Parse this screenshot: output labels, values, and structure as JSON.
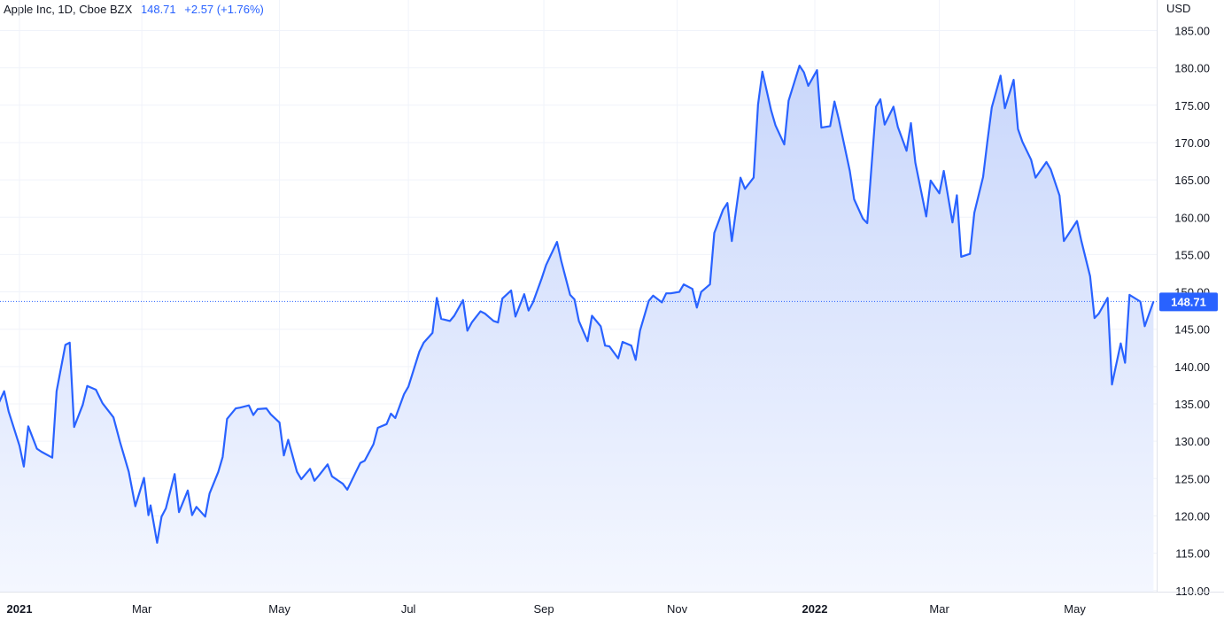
{
  "legend": {
    "symbol": "Apple Inc, 1D, Cboe BZX",
    "last": "148.71",
    "change": "+2.57 (+1.76%)"
  },
  "currency": "USD",
  "colors": {
    "line": "#2962ff",
    "fill_top": "#c9d7fb",
    "fill_bottom": "#f4f7ff",
    "grid": "#f0f3fa",
    "text": "#131722",
    "price_line": "#2962ff"
  },
  "chart_data": {
    "type": "area",
    "title": "Apple Inc, 1D, Cboe BZX",
    "ylabel": "USD",
    "ylim": [
      110,
      185
    ],
    "grid": true,
    "y_ticks": [
      "185.00",
      "180.00",
      "175.00",
      "170.00",
      "165.00",
      "160.00",
      "155.00",
      "150.00",
      "145.00",
      "140.00",
      "135.00",
      "130.00",
      "125.00",
      "120.00",
      "115.00",
      "110.00"
    ],
    "x_ticks": [
      {
        "label": "2021",
        "date": "2021-01-04",
        "major": true
      },
      {
        "label": "Mar",
        "date": "2021-03-01",
        "major": false
      },
      {
        "label": "May",
        "date": "2021-05-03",
        "major": false
      },
      {
        "label": "Jul",
        "date": "2021-07-01",
        "major": false
      },
      {
        "label": "Sep",
        "date": "2021-09-01",
        "major": false
      },
      {
        "label": "Nov",
        "date": "2021-11-01",
        "major": false
      },
      {
        "label": "2022",
        "date": "2022-01-03",
        "major": true
      },
      {
        "label": "Mar",
        "date": "2022-03-01",
        "major": false
      },
      {
        "label": "May",
        "date": "2022-05-02",
        "major": false
      }
    ],
    "last_price": "148.71",
    "series": [
      {
        "name": "Apple Inc",
        "points": [
          [
            "2020-12-16",
            132.5
          ],
          [
            "2020-12-18",
            131.5
          ],
          [
            "2020-12-21",
            132.0
          ],
          [
            "2020-12-23",
            133.5
          ],
          [
            "2020-12-28",
            136.7
          ],
          [
            "2020-12-30",
            134.0
          ],
          [
            "2021-01-04",
            129.4
          ],
          [
            "2021-01-06",
            126.6
          ],
          [
            "2021-01-08",
            132.0
          ],
          [
            "2021-01-12",
            129.0
          ],
          [
            "2021-01-14",
            128.6
          ],
          [
            "2021-01-19",
            127.8
          ],
          [
            "2021-01-21",
            136.7
          ],
          [
            "2021-01-25",
            142.9
          ],
          [
            "2021-01-27",
            143.2
          ],
          [
            "2021-01-29",
            131.9
          ],
          [
            "2021-02-02",
            134.9
          ],
          [
            "2021-02-04",
            137.4
          ],
          [
            "2021-02-08",
            136.9
          ],
          [
            "2021-02-11",
            135.1
          ],
          [
            "2021-02-16",
            133.2
          ],
          [
            "2021-02-19",
            129.9
          ],
          [
            "2021-02-23",
            125.9
          ],
          [
            "2021-02-26",
            121.3
          ],
          [
            "2021-03-02",
            125.1
          ],
          [
            "2021-03-04",
            120.1
          ],
          [
            "2021-03-05",
            121.4
          ],
          [
            "2021-03-08",
            116.4
          ],
          [
            "2021-03-10",
            119.9
          ],
          [
            "2021-03-12",
            121.0
          ],
          [
            "2021-03-16",
            125.6
          ],
          [
            "2021-03-18",
            120.5
          ],
          [
            "2021-03-22",
            123.4
          ],
          [
            "2021-03-24",
            120.1
          ],
          [
            "2021-03-26",
            121.2
          ],
          [
            "2021-03-30",
            119.9
          ],
          [
            "2021-04-01",
            123.0
          ],
          [
            "2021-04-05",
            125.9
          ],
          [
            "2021-04-07",
            127.9
          ],
          [
            "2021-04-09",
            133.0
          ],
          [
            "2021-04-13",
            134.4
          ],
          [
            "2021-04-15",
            134.5
          ],
          [
            "2021-04-19",
            134.8
          ],
          [
            "2021-04-21",
            133.5
          ],
          [
            "2021-04-23",
            134.3
          ],
          [
            "2021-04-27",
            134.4
          ],
          [
            "2021-04-29",
            133.6
          ],
          [
            "2021-05-03",
            132.5
          ],
          [
            "2021-05-05",
            128.1
          ],
          [
            "2021-05-07",
            130.2
          ],
          [
            "2021-05-11",
            125.9
          ],
          [
            "2021-05-13",
            124.9
          ],
          [
            "2021-05-17",
            126.3
          ],
          [
            "2021-05-19",
            124.7
          ],
          [
            "2021-05-21",
            125.4
          ],
          [
            "2021-05-25",
            126.9
          ],
          [
            "2021-05-27",
            125.3
          ],
          [
            "2021-06-01",
            124.3
          ],
          [
            "2021-06-03",
            123.5
          ],
          [
            "2021-06-07",
            125.9
          ],
          [
            "2021-06-09",
            127.1
          ],
          [
            "2021-06-11",
            127.4
          ],
          [
            "2021-06-15",
            129.6
          ],
          [
            "2021-06-17",
            131.8
          ],
          [
            "2021-06-21",
            132.3
          ],
          [
            "2021-06-23",
            133.7
          ],
          [
            "2021-06-25",
            133.1
          ],
          [
            "2021-06-29",
            136.3
          ],
          [
            "2021-07-01",
            137.3
          ],
          [
            "2021-07-06",
            142.0
          ],
          [
            "2021-07-08",
            143.2
          ],
          [
            "2021-07-12",
            144.5
          ],
          [
            "2021-07-14",
            149.2
          ],
          [
            "2021-07-16",
            146.4
          ],
          [
            "2021-07-20",
            146.1
          ],
          [
            "2021-07-22",
            146.8
          ],
          [
            "2021-07-26",
            148.9
          ],
          [
            "2021-07-28",
            144.8
          ],
          [
            "2021-07-30",
            145.9
          ],
          [
            "2021-08-03",
            147.4
          ],
          [
            "2021-08-05",
            147.1
          ],
          [
            "2021-08-09",
            146.1
          ],
          [
            "2021-08-11",
            145.9
          ],
          [
            "2021-08-13",
            149.1
          ],
          [
            "2021-08-17",
            150.2
          ],
          [
            "2021-08-19",
            146.7
          ],
          [
            "2021-08-23",
            149.7
          ],
          [
            "2021-08-25",
            147.5
          ],
          [
            "2021-08-27",
            148.6
          ],
          [
            "2021-08-31",
            151.8
          ],
          [
            "2021-09-02",
            153.6
          ],
          [
            "2021-09-07",
            156.7
          ],
          [
            "2021-09-09",
            154.1
          ],
          [
            "2021-09-13",
            149.6
          ],
          [
            "2021-09-15",
            149.0
          ],
          [
            "2021-09-17",
            146.1
          ],
          [
            "2021-09-21",
            143.4
          ],
          [
            "2021-09-23",
            146.8
          ],
          [
            "2021-09-27",
            145.4
          ],
          [
            "2021-09-29",
            142.8
          ],
          [
            "2021-10-01",
            142.7
          ],
          [
            "2021-10-05",
            141.1
          ],
          [
            "2021-10-07",
            143.3
          ],
          [
            "2021-10-11",
            142.8
          ],
          [
            "2021-10-13",
            140.9
          ],
          [
            "2021-10-15",
            144.8
          ],
          [
            "2021-10-19",
            148.8
          ],
          [
            "2021-10-21",
            149.5
          ],
          [
            "2021-10-25",
            148.6
          ],
          [
            "2021-10-27",
            149.8
          ],
          [
            "2021-10-29",
            149.8
          ],
          [
            "2021-11-02",
            150.0
          ],
          [
            "2021-11-04",
            151.0
          ],
          [
            "2021-11-08",
            150.4
          ],
          [
            "2021-11-10",
            147.9
          ],
          [
            "2021-11-12",
            149.99
          ],
          [
            "2021-11-16",
            151.0
          ],
          [
            "2021-11-18",
            157.9
          ],
          [
            "2021-11-22",
            161.0
          ],
          [
            "2021-11-24",
            161.9
          ],
          [
            "2021-11-26",
            156.8
          ],
          [
            "2021-11-30",
            165.3
          ],
          [
            "2021-12-02",
            163.8
          ],
          [
            "2021-12-06",
            165.3
          ],
          [
            "2021-12-08",
            175.1
          ],
          [
            "2021-12-10",
            179.5
          ],
          [
            "2021-12-14",
            174.3
          ],
          [
            "2021-12-16",
            172.3
          ],
          [
            "2021-12-20",
            169.75
          ],
          [
            "2021-12-22",
            175.6
          ],
          [
            "2021-12-27",
            180.3
          ],
          [
            "2021-12-29",
            179.4
          ],
          [
            "2021-12-31",
            177.6
          ],
          [
            "2022-01-04",
            179.7
          ],
          [
            "2022-01-06",
            172.0
          ],
          [
            "2022-01-10",
            172.2
          ],
          [
            "2022-01-12",
            175.5
          ],
          [
            "2022-01-14",
            173.1
          ],
          [
            "2022-01-19",
            166.2
          ],
          [
            "2022-01-21",
            162.4
          ],
          [
            "2022-01-25",
            159.8
          ],
          [
            "2022-01-27",
            159.2
          ],
          [
            "2022-01-31",
            174.8
          ],
          [
            "2022-02-02",
            175.8
          ],
          [
            "2022-02-04",
            172.4
          ],
          [
            "2022-02-08",
            174.8
          ],
          [
            "2022-02-10",
            172.1
          ],
          [
            "2022-02-14",
            168.9
          ],
          [
            "2022-02-16",
            172.6
          ],
          [
            "2022-02-18",
            167.3
          ],
          [
            "2022-02-23",
            160.1
          ],
          [
            "2022-02-25",
            164.9
          ],
          [
            "2022-03-01",
            163.2
          ],
          [
            "2022-03-03",
            166.2
          ],
          [
            "2022-03-07",
            159.3
          ],
          [
            "2022-03-09",
            162.95
          ],
          [
            "2022-03-11",
            154.7
          ],
          [
            "2022-03-15",
            155.1
          ],
          [
            "2022-03-17",
            160.6
          ],
          [
            "2022-03-21",
            165.4
          ],
          [
            "2022-03-23",
            170.2
          ],
          [
            "2022-03-25",
            174.7
          ],
          [
            "2022-03-29",
            178.96
          ],
          [
            "2022-03-31",
            174.6
          ],
          [
            "2022-04-04",
            178.4
          ],
          [
            "2022-04-06",
            171.8
          ],
          [
            "2022-04-08",
            170.1
          ],
          [
            "2022-04-12",
            167.7
          ],
          [
            "2022-04-14",
            165.3
          ],
          [
            "2022-04-19",
            167.4
          ],
          [
            "2022-04-21",
            166.4
          ],
          [
            "2022-04-25",
            162.9
          ],
          [
            "2022-04-27",
            156.8
          ],
          [
            "2022-04-29",
            157.7
          ],
          [
            "2022-05-03",
            159.5
          ],
          [
            "2022-05-05",
            156.8
          ],
          [
            "2022-05-09",
            152.1
          ],
          [
            "2022-05-11",
            146.5
          ],
          [
            "2022-05-13",
            147.1
          ],
          [
            "2022-05-17",
            149.2
          ],
          [
            "2022-05-19",
            137.6
          ],
          [
            "2022-05-23",
            143.1
          ],
          [
            "2022-05-25",
            140.5
          ],
          [
            "2022-05-27",
            149.6
          ],
          [
            "2022-06-01",
            148.7
          ],
          [
            "2022-06-03",
            145.4
          ],
          [
            "2022-06-07",
            148.71
          ]
        ]
      }
    ]
  }
}
